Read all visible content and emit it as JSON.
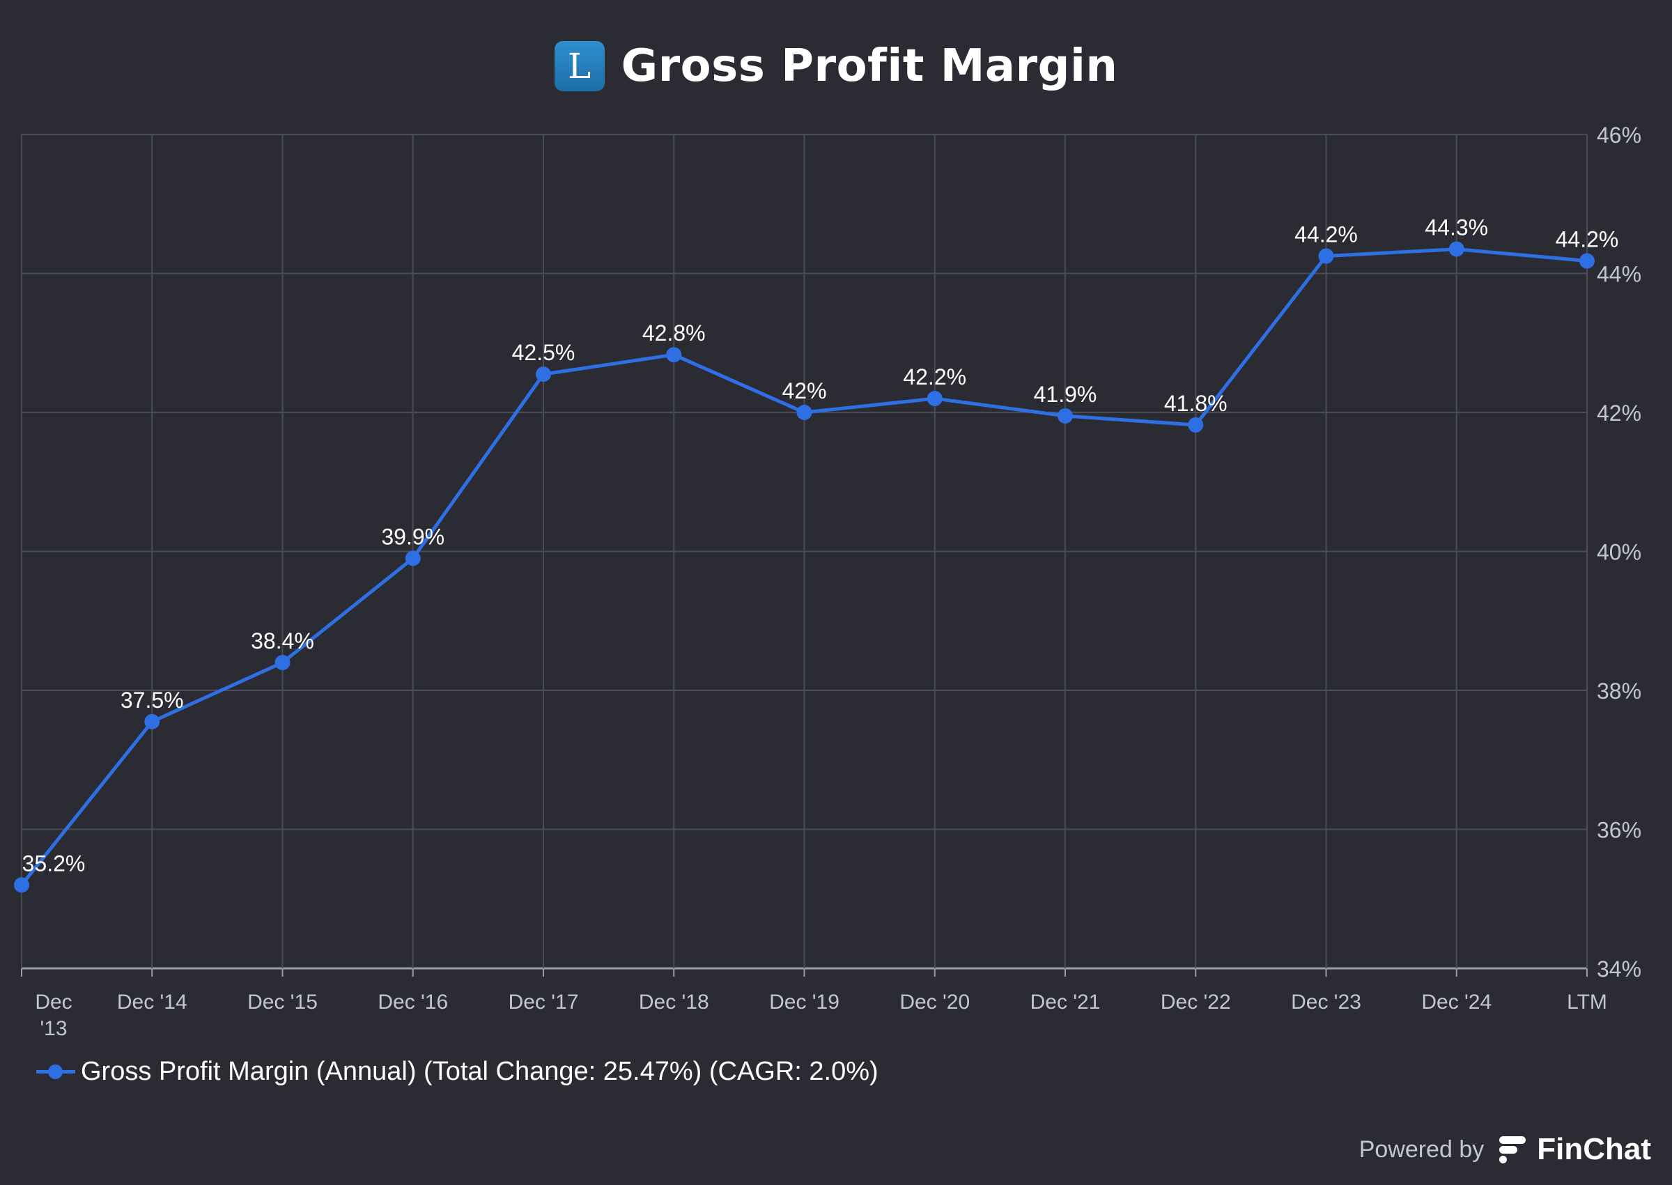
{
  "header": {
    "logo_letter": "L",
    "title": "Gross Profit Margin"
  },
  "chart_data": {
    "type": "line",
    "title": "Gross Profit Margin",
    "categories": [
      "Dec '13",
      "Dec '14",
      "Dec '15",
      "Dec '16",
      "Dec '17",
      "Dec '18",
      "Dec '19",
      "Dec '20",
      "Dec '21",
      "Dec '22",
      "Dec '23",
      "Dec '24",
      "LTM"
    ],
    "series": [
      {
        "name": "Gross Profit Margin (Annual) (Total Change: 25.47%) (CAGR: 2.0%)",
        "values": [
          35.2,
          37.55,
          38.4,
          39.9,
          42.55,
          42.83,
          42.0,
          42.2,
          41.95,
          41.82,
          44.25,
          44.35,
          44.18
        ],
        "labels": [
          "35.2%",
          "37.5%",
          "38.4%",
          "39.9%",
          "42.5%",
          "42.8%",
          "42%",
          "42.2%",
          "41.9%",
          "41.8%",
          "44.2%",
          "44.3%",
          "44.2%"
        ],
        "color": "#2f6fe4"
      }
    ],
    "y_ticks": [
      34,
      36,
      38,
      40,
      42,
      44,
      46
    ],
    "y_tick_labels": [
      "34%",
      "36%",
      "38%",
      "40%",
      "42%",
      "44%",
      "46%"
    ],
    "ylim": [
      34,
      46
    ],
    "y_axis_side": "right",
    "grid": true,
    "xlabel": "",
    "ylabel": ""
  },
  "legend": {
    "label": "Gross Profit Margin (Annual) (Total Change: 25.47%) (CAGR: 2.0%)",
    "placement": "bottom-left"
  },
  "footer": {
    "powered_by": "Powered by",
    "brand": "FinChat"
  },
  "colors": {
    "background": "#2a2b33",
    "grid": "#4a4c56",
    "axis_text": "#c4c6cf",
    "series": "#2f6fe4",
    "logo": "#2a86c6"
  }
}
